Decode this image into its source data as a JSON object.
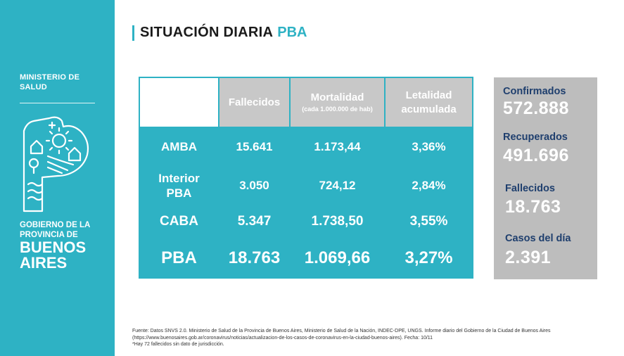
{
  "sidebar": {
    "ministry_line1": "MINISTERIO DE",
    "ministry_line2": "SALUD",
    "gov_line1": "GOBIERNO DE LA",
    "gov_line2": "PROVINCIA DE",
    "gov_line3": "BUENOS",
    "gov_line4": "AIRES"
  },
  "header": {
    "title": "SITUACIÓN DIARIA",
    "title_accent": "PBA"
  },
  "table": {
    "headers": {
      "fallecidos": "Fallecidos",
      "mortalidad": "Mortalidad",
      "mortalidad_sub": "(cada 1.000.000 de hab)",
      "letalidad_1": "Letalidad",
      "letalidad_2": "acumulada"
    },
    "rows": [
      {
        "region_1": "AMBA",
        "region_2": "",
        "fallecidos": "15.641",
        "mortalidad": "1.173,44",
        "letalidad": "3,36%"
      },
      {
        "region_1": "Interior",
        "region_2": "PBA",
        "fallecidos": "3.050",
        "mortalidad": "724,12",
        "letalidad": "2,84%"
      },
      {
        "region_1": "CABA",
        "region_2": "",
        "fallecidos": "5.347",
        "mortalidad": "1.738,50",
        "letalidad": "3,55%"
      },
      {
        "region_1": "PBA",
        "region_2": "",
        "fallecidos": "18.763",
        "mortalidad": "1.069,66",
        "letalidad": "3,27%"
      }
    ]
  },
  "stats": {
    "confirmados_label": "Confirmados",
    "confirmados_value": "572.888",
    "recuperados_label": "Recuperados",
    "recuperados_value": "491.696",
    "fallecidos_label": "Fallecidos",
    "fallecidos_value": "18.763",
    "casos_label": "Casos del día",
    "casos_value": "2.391"
  },
  "footer": {
    "line1": "Fuente: Datos SNVS 2.0. Ministerio de Salud de la Provincia de Buenos Aires, Ministerio de Salud de la Nación, INDEC-DPE, UNGS. Informe diario del Gobierno de la Ciudad de Buenos Aires",
    "line2": "(https://www.buenosaires.gob.ar/coronavirus/noticias/actualizacion-de-los-casos-de-coronavirus-en-la-ciudad-buenos-aires). Fecha: 10/11",
    "line3": "*Hay 72  fallecidos sin dato de jurisdicción."
  },
  "colors": {
    "accent": "#2eb2c4",
    "header_gray": "#c8c8c8",
    "stats_gray": "#bdbdbd",
    "stat_label": "#1f3f6e"
  }
}
